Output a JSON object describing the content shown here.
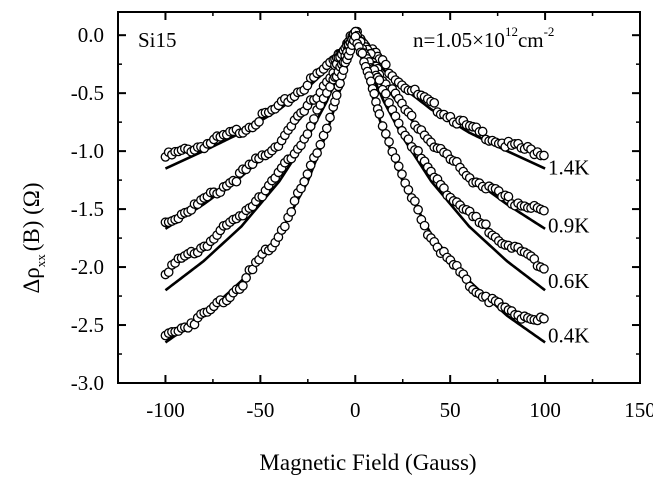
{
  "chart_data": {
    "type": "scatter",
    "title": "",
    "xlabel": "Magnetic Field (Gauss)",
    "ylabel": {
      "prefix": "Δρ",
      "subscript": "xx",
      "suffix": "(B) (Ω)"
    },
    "xlim": [
      -125,
      150
    ],
    "ylim": [
      -3.0,
      0.2
    ],
    "x_ticks": [
      -100,
      -50,
      0,
      50,
      100,
      150
    ],
    "y_ticks": [
      0.0,
      -0.5,
      -1.0,
      -1.5,
      -2.0,
      -2.5,
      -3.0
    ],
    "x_tick_labels": [
      "-100",
      "-50",
      "0",
      "50",
      "100",
      "150"
    ],
    "y_tick_labels": [
      "0.0",
      "-0.5",
      "-1.0",
      "-1.5",
      "-2.0",
      "-2.5",
      "-3.0"
    ],
    "sample_label": "Si15",
    "density_label": {
      "base": "n=1.05×10",
      "exponent": "12",
      "unit": "cm",
      "unit_exponent": "-2"
    },
    "series": [
      {
        "name": "1.4K",
        "data": {
          "x": [
            -100,
            -80,
            -60,
            -40,
            -25,
            -15,
            -8,
            -4,
            0,
            4,
            8,
            15,
            25,
            40,
            60,
            80,
            100
          ],
          "y": [
            -1.05,
            -0.95,
            -0.82,
            -0.62,
            -0.42,
            -0.27,
            -0.14,
            -0.07,
            0.03,
            -0.05,
            -0.12,
            -0.25,
            -0.42,
            -0.6,
            -0.8,
            -0.95,
            -1.02
          ]
        },
        "fit": {
          "x": [
            -100,
            -80,
            -60,
            -40,
            -25,
            -15,
            -8,
            -4,
            0,
            4,
            8,
            15,
            25,
            40,
            60,
            80,
            100
          ],
          "y": [
            -1.15,
            -1.0,
            -0.84,
            -0.64,
            -0.45,
            -0.3,
            -0.17,
            -0.09,
            0.0,
            -0.09,
            -0.17,
            -0.3,
            -0.45,
            -0.64,
            -0.84,
            -1.0,
            -1.15
          ]
        }
      },
      {
        "name": "0.9K",
        "data": {
          "x": [
            -100,
            -80,
            -60,
            -40,
            -25,
            -15,
            -8,
            -4,
            0,
            4,
            8,
            15,
            25,
            40,
            60,
            80,
            100
          ],
          "y": [
            -1.62,
            -1.43,
            -1.2,
            -0.92,
            -0.62,
            -0.4,
            -0.2,
            -0.1,
            0.02,
            -0.08,
            -0.18,
            -0.38,
            -0.62,
            -0.92,
            -1.22,
            -1.42,
            -1.52
          ]
        },
        "fit": {
          "x": [
            -100,
            -80,
            -60,
            -40,
            -25,
            -15,
            -8,
            -4,
            0,
            4,
            8,
            15,
            25,
            40,
            60,
            80,
            100
          ],
          "y": [
            -1.67,
            -1.46,
            -1.22,
            -0.93,
            -0.64,
            -0.42,
            -0.23,
            -0.12,
            0.0,
            -0.12,
            -0.23,
            -0.42,
            -0.64,
            -0.93,
            -1.22,
            -1.46,
            -1.67
          ]
        }
      },
      {
        "name": "0.6K",
        "data": {
          "x": [
            -100,
            -80,
            -60,
            -40,
            -25,
            -15,
            -8,
            -4,
            0,
            4,
            8,
            15,
            25,
            40,
            60,
            80,
            100
          ],
          "y": [
            -2.03,
            -1.82,
            -1.55,
            -1.2,
            -0.83,
            -0.52,
            -0.27,
            -0.13,
            0.01,
            -0.12,
            -0.25,
            -0.5,
            -0.82,
            -1.2,
            -1.55,
            -1.8,
            -2.0
          ]
        },
        "fit": {
          "x": [
            -100,
            -80,
            -60,
            -40,
            -25,
            -15,
            -8,
            -4,
            0,
            4,
            8,
            15,
            25,
            40,
            60,
            80,
            100
          ],
          "y": [
            -2.2,
            -1.95,
            -1.65,
            -1.26,
            -0.88,
            -0.57,
            -0.31,
            -0.16,
            0.0,
            -0.16,
            -0.31,
            -0.57,
            -0.88,
            -1.26,
            -1.65,
            -1.95,
            -2.2
          ]
        }
      },
      {
        "name": "0.4K",
        "data": {
          "x": [
            -100,
            -80,
            -60,
            -40,
            -25,
            -15,
            -8,
            -4,
            0,
            4,
            8,
            15,
            25,
            40,
            60,
            80,
            100
          ],
          "y": [
            -2.6,
            -2.42,
            -2.15,
            -1.72,
            -1.2,
            -0.78,
            -0.42,
            -0.2,
            0.0,
            -0.2,
            -0.42,
            -0.78,
            -1.25,
            -1.75,
            -2.15,
            -2.38,
            -2.47
          ]
        },
        "fit": {
          "x": [
            -100,
            -80,
            -60,
            -40,
            -25,
            -15,
            -8,
            -4,
            0,
            4,
            8,
            15,
            25,
            40,
            60,
            80,
            100
          ],
          "y": [
            -2.65,
            -2.42,
            -2.12,
            -1.72,
            -1.26,
            -0.84,
            -0.47,
            -0.24,
            0.0,
            -0.24,
            -0.47,
            -0.84,
            -1.26,
            -1.72,
            -2.12,
            -2.42,
            -2.65
          ]
        }
      }
    ],
    "grid": false,
    "legend": "none"
  }
}
